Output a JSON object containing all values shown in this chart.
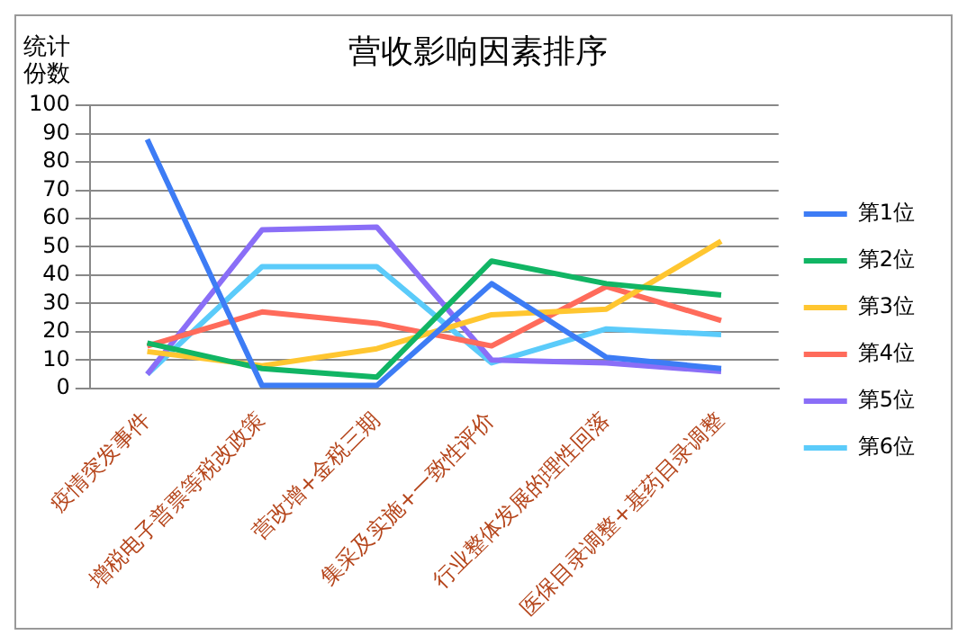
{
  "chart_data": {
    "type": "line",
    "title": "营收影响因素排序",
    "ylabel": "统计份数",
    "categories": [
      "疫情突发事件",
      "增税电子普票等税改政策",
      "营改增+金税三期",
      "集采及实施+一致性评价",
      "行业整体发展的理性回落",
      "医保目录调整+基药目录调整"
    ],
    "series": [
      {
        "name": "第1位",
        "color": "#3d7cf5",
        "values": [
          88,
          1,
          1,
          37,
          11,
          7
        ]
      },
      {
        "name": "第2位",
        "color": "#11b564",
        "values": [
          16,
          7,
          4,
          45,
          37,
          33
        ]
      },
      {
        "name": "第3位",
        "color": "#ffc630",
        "values": [
          13,
          8,
          14,
          26,
          28,
          52
        ]
      },
      {
        "name": "第4位",
        "color": "#ff6b5b",
        "values": [
          15,
          27,
          23,
          15,
          36,
          24
        ]
      },
      {
        "name": "第5位",
        "color": "#8a6ef7",
        "values": [
          5,
          56,
          57,
          10,
          9,
          6
        ]
      },
      {
        "name": "第6位",
        "color": "#5bcbfa",
        "values": [
          5,
          43,
          43,
          9,
          21,
          19
        ]
      }
    ],
    "ylim": [
      0,
      100
    ],
    "yticks": [
      0,
      10,
      20,
      30,
      40,
      50,
      60,
      70,
      80,
      90,
      100
    ],
    "grid": "y",
    "legend": "right",
    "marker": "none",
    "line_style": "solid"
  }
}
